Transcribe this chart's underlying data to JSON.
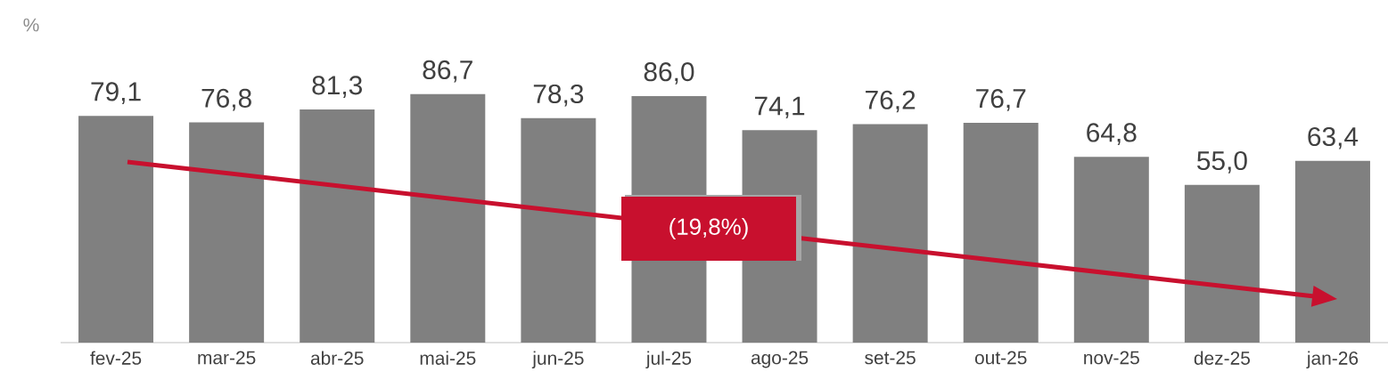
{
  "chart_data": {
    "type": "bar",
    "ylabel": "%",
    "categories": [
      "fev-25",
      "mar-25",
      "abr-25",
      "mai-25",
      "jun-25",
      "jul-25",
      "ago-25",
      "set-25",
      "out-25",
      "nov-25",
      "dez-25",
      "jan-26"
    ],
    "values": [
      79.1,
      76.8,
      81.3,
      86.7,
      78.3,
      86.0,
      74.1,
      76.2,
      76.7,
      64.8,
      55.0,
      63.4
    ],
    "value_labels": [
      "79,1",
      "76,8",
      "81,3",
      "86,7",
      "78,3",
      "86,0",
      "74,1",
      "76,2",
      "76,7",
      "64,8",
      "55,0",
      "63,4"
    ],
    "color": "#808080",
    "annotations": [
      "(19,8%)"
    ]
  }
}
